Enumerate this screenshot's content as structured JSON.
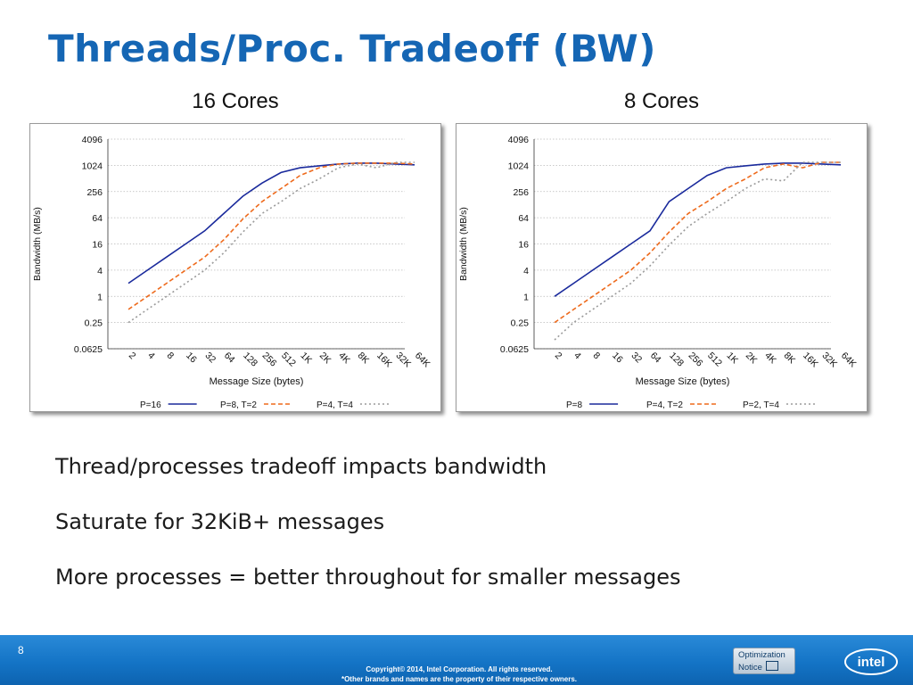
{
  "slide": {
    "title": "Threads/Proc. Tradeoff (BW)",
    "bullets": [
      "Thread/processes tradeoff impacts bandwidth",
      "Saturate for 32KiB+ messages",
      "More processes = better throughout for smaller messages"
    ],
    "page_number": "8",
    "copyright_line1": "Copyright© 2014, Intel Corporation. All rights reserved.",
    "copyright_line2": "*Other brands and names are the property of their respective owners.",
    "optimization_notice_line1": "Optimization",
    "optimization_notice_line2": "Notice",
    "logo_text": "intel",
    "colors": {
      "title": "#1566b4",
      "footer": "#1474c6",
      "series_solid": "#1a2a9c",
      "series_dashed": "#ee6a1c",
      "series_dotted": "#9a9a9a"
    }
  },
  "chart_data": [
    {
      "type": "line",
      "title": "16 Cores",
      "xlabel": "Message Size (bytes)",
      "ylabel": "Bandwidth (MB/s)",
      "y_scale": "log2",
      "ylim": [
        0.0625,
        4096
      ],
      "yticks": [
        "4096",
        "1024",
        "256",
        "64",
        "16",
        "4",
        "1",
        "0.25",
        "0.0625"
      ],
      "categories": [
        "2",
        "4",
        "8",
        "16",
        "32",
        "64",
        "128",
        "256",
        "512",
        "1K",
        "2K",
        "4K",
        "8K",
        "16K",
        "32K",
        "64K"
      ],
      "grid": true,
      "legend_position": "bottom",
      "series": [
        {
          "name": "P=16",
          "style": "solid",
          "values": [
            2,
            4,
            8,
            16,
            32,
            80,
            200,
            400,
            700,
            900,
            1000,
            1100,
            1150,
            1150,
            1100,
            1050
          ]
        },
        {
          "name": "P=8, T=2",
          "style": "dashed",
          "values": [
            0.5,
            1,
            2,
            4,
            8,
            20,
            60,
            150,
            300,
            600,
            900,
            1100,
            1150,
            1150,
            1150,
            1100
          ]
        },
        {
          "name": "P=4, T=4",
          "style": "dotted",
          "values": [
            0.25,
            0.5,
            1,
            2,
            4,
            10,
            30,
            80,
            150,
            300,
            500,
            900,
            1100,
            900,
            1200,
            1200
          ]
        }
      ]
    },
    {
      "type": "line",
      "title": "8 Cores",
      "xlabel": "Message Size (bytes)",
      "ylabel": "Bandwidth (MB/s)",
      "y_scale": "log2",
      "ylim": [
        0.0625,
        4096
      ],
      "yticks": [
        "4096",
        "1024",
        "256",
        "64",
        "16",
        "4",
        "1",
        "0.25",
        "0.0625"
      ],
      "categories": [
        "2",
        "4",
        "8",
        "16",
        "32",
        "64",
        "128",
        "256",
        "512",
        "1K",
        "2K",
        "4K",
        "8K",
        "16K",
        "32K",
        "64K"
      ],
      "grid": true,
      "legend_position": "bottom",
      "series": [
        {
          "name": "P=8",
          "style": "solid",
          "values": [
            1,
            2,
            4,
            8,
            16,
            32,
            150,
            300,
            600,
            900,
            1000,
            1100,
            1150,
            1150,
            1100,
            1050
          ]
        },
        {
          "name": "P=4, T=2",
          "style": "dashed",
          "values": [
            0.25,
            0.5,
            1,
            2,
            4,
            10,
            30,
            80,
            150,
            300,
            500,
            900,
            1100,
            900,
            1200,
            1200
          ]
        },
        {
          "name": "P=2, T=4",
          "style": "dotted",
          "values": [
            0.1,
            0.25,
            0.5,
            1,
            2,
            5,
            15,
            40,
            80,
            150,
            300,
            500,
            450,
            1200,
            1200,
            1200
          ]
        }
      ]
    }
  ]
}
